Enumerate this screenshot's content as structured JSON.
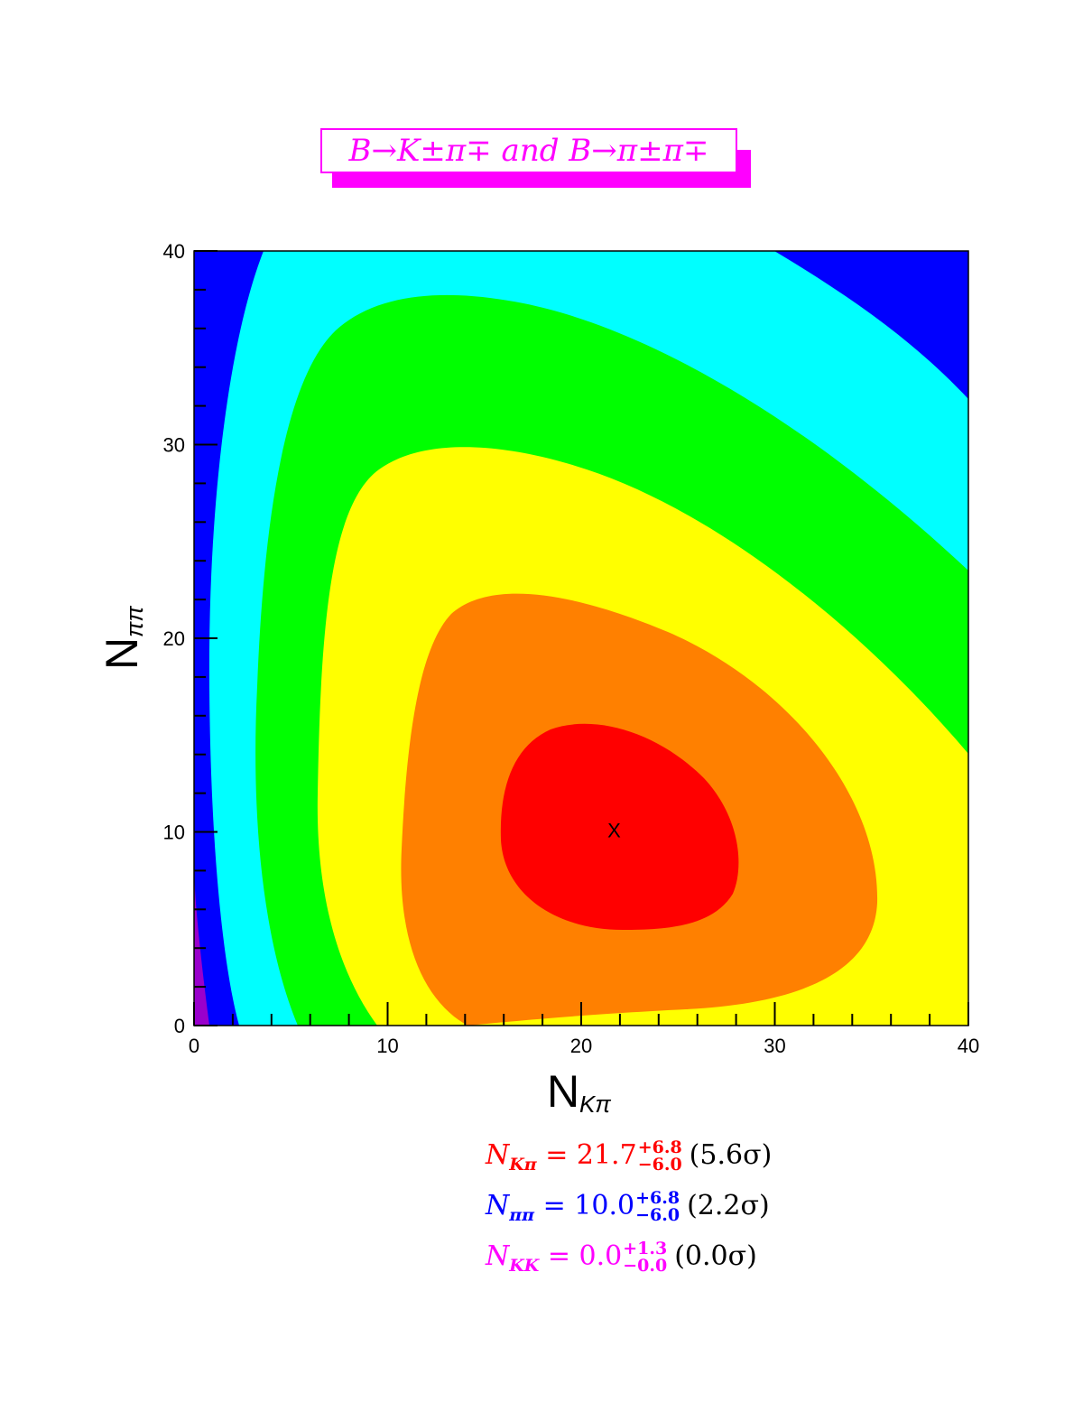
{
  "title": "B→K±π∓ and B→π±π∓",
  "colors": {
    "title": "#ff00ff",
    "levels": [
      "#ff0000",
      "#ff8000",
      "#ffff00",
      "#00ff00",
      "#00ffff",
      "#0000ff",
      "#9900cc",
      "#000000"
    ]
  },
  "chart_data": {
    "type": "heatmap",
    "subtype": "contour",
    "xlabel": "N",
    "xlabel_sub": "Kπ",
    "ylabel": "N",
    "ylabel_sub": "ππ",
    "xlim": [
      0,
      40
    ],
    "ylim": [
      0,
      40
    ],
    "x_ticks": [
      "0",
      "10",
      "20",
      "30",
      "40"
    ],
    "y_ticks": [
      "0",
      "10",
      "20",
      "30",
      "40"
    ],
    "best_fit": {
      "x": 21.7,
      "y": 10.0,
      "marker": "X"
    },
    "grid": false,
    "legend": "none"
  },
  "results": [
    {
      "name": "N",
      "sub": "Kπ",
      "eq": "= 21.7",
      "plus": "+6.8",
      "minus": "−6.0",
      "sig": "(5.6σ)",
      "color": "#ff0000"
    },
    {
      "name": "N",
      "sub": "ππ",
      "eq": "= 10.0",
      "plus": "+6.8",
      "minus": "−6.0",
      "sig": "(2.2σ)",
      "color": "#0000ff"
    },
    {
      "name": "N",
      "sub": "KK",
      "eq": "= 0.0",
      "plus": "+1.3",
      "minus": "−0.0",
      "sig": "(0.0σ)",
      "color": "#ff00ff"
    }
  ]
}
